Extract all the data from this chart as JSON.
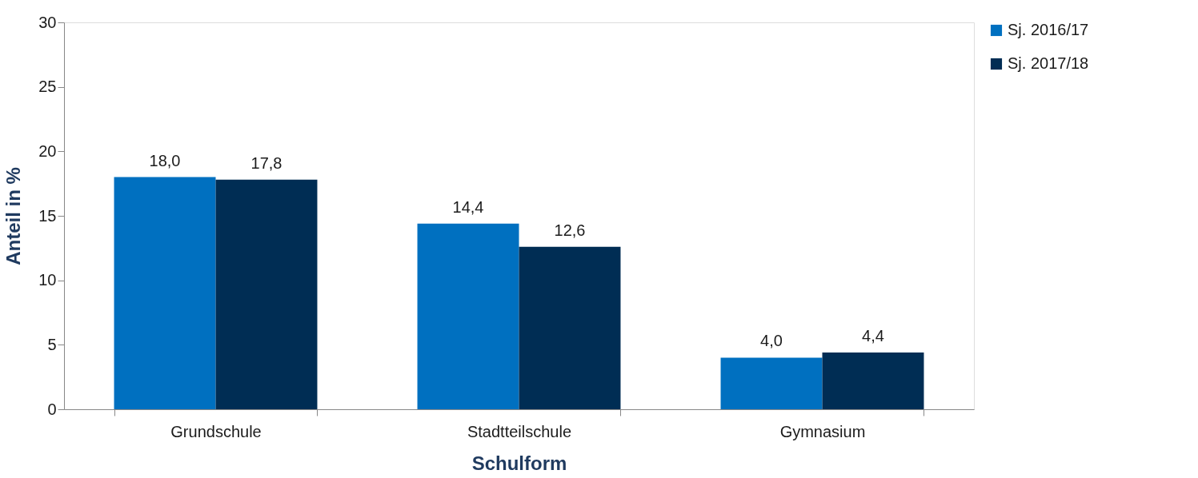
{
  "chart_data": {
    "type": "bar",
    "xlabel": "Schulform",
    "ylabel": "Anteil in %",
    "categories": [
      "Grundschule",
      "Stadtteilschule",
      "Gymnasium"
    ],
    "series": [
      {
        "name": "Sj. 2016/17",
        "color": "#0070c0",
        "values": [
          18.0,
          14.4,
          4.0
        ],
        "value_labels": [
          "18,0",
          "14,4",
          "4,0"
        ]
      },
      {
        "name": "Sj. 2017/18",
        "color": "#002d54",
        "values": [
          17.8,
          12.6,
          4.4
        ],
        "value_labels": [
          "17,8",
          "12,6",
          "4,4"
        ]
      }
    ],
    "ylim": [
      0,
      30
    ],
    "yticks": [
      0,
      5,
      10,
      15,
      20,
      25,
      30
    ],
    "grid": false,
    "legend": "right"
  }
}
